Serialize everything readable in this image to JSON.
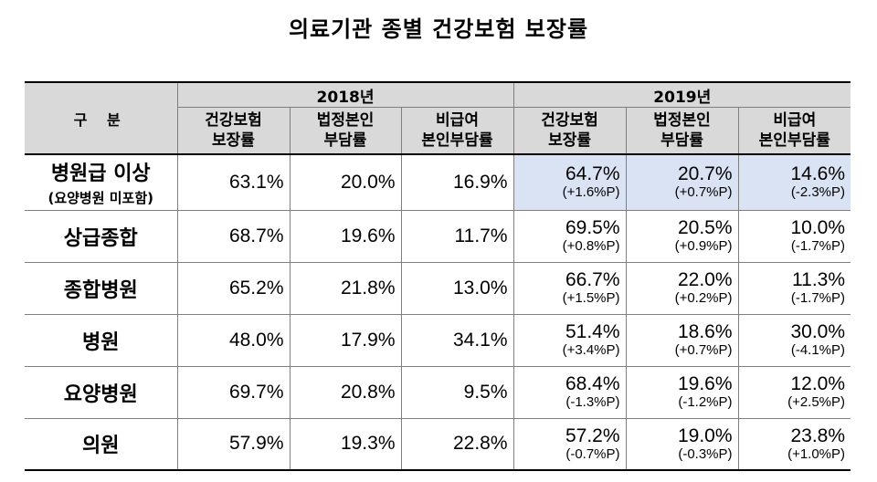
{
  "title": "의료기관 종별 건강보험 보장률",
  "table": {
    "category_header": "구 분",
    "years": [
      "2018년",
      "2019년"
    ],
    "columns": [
      {
        "line1": "건강보험",
        "line2": "보장률"
      },
      {
        "line1": "법정본인",
        "line2": "부담률"
      },
      {
        "line1": "비급여",
        "line2": "본인부담률"
      }
    ],
    "rows": [
      {
        "label": "병원급 이상",
        "note": "(요양병원 미포함)",
        "y2018": [
          "63.1%",
          "20.0%",
          "16.9%"
        ],
        "y2019": [
          {
            "value": "64.7%",
            "change": "(+1.6%P)"
          },
          {
            "value": "20.7%",
            "change": "(+0.7%P)"
          },
          {
            "value": "14.6%",
            "change": "(-2.3%P)"
          }
        ]
      },
      {
        "label": "상급종합",
        "y2018": [
          "68.7%",
          "19.6%",
          "11.7%"
        ],
        "y2019": [
          {
            "value": "69.5%",
            "change": "(+0.8%P)"
          },
          {
            "value": "20.5%",
            "change": "(+0.9%P)"
          },
          {
            "value": "10.0%",
            "change": "(-1.7%P)"
          }
        ]
      },
      {
        "label": "종합병원",
        "y2018": [
          "65.2%",
          "21.8%",
          "13.0%"
        ],
        "y2019": [
          {
            "value": "66.7%",
            "change": "(+1.5%P)"
          },
          {
            "value": "22.0%",
            "change": "(+0.2%P)"
          },
          {
            "value": "11.3%",
            "change": "(-1.7%P)"
          }
        ]
      },
      {
        "label": "병원",
        "y2018": [
          "48.0%",
          "17.9%",
          "34.1%"
        ],
        "y2019": [
          {
            "value": "51.4%",
            "change": "(+3.4%P)"
          },
          {
            "value": "18.6%",
            "change": "(+0.7%P)"
          },
          {
            "value": "30.0%",
            "change": "(-4.1%P)"
          }
        ]
      },
      {
        "label": "요양병원",
        "y2018": [
          "69.7%",
          "20.8%",
          "9.5%"
        ],
        "y2019": [
          {
            "value": "68.4%",
            "change": "(-1.3%P)"
          },
          {
            "value": "19.6%",
            "change": "(-1.2%P)"
          },
          {
            "value": "12.0%",
            "change": "(+2.5%P)"
          }
        ]
      },
      {
        "label": "의원",
        "y2018": [
          "57.9%",
          "19.3%",
          "22.8%"
        ],
        "y2019": [
          {
            "value": "57.2%",
            "change": "(-0.7%P)"
          },
          {
            "value": "19.0%",
            "change": "(-0.3%P)"
          },
          {
            "value": "23.8%",
            "change": "(+1.0%P)"
          }
        ]
      }
    ],
    "highlight_color": "#dae3f3",
    "header_color": "#d9d9d9"
  }
}
